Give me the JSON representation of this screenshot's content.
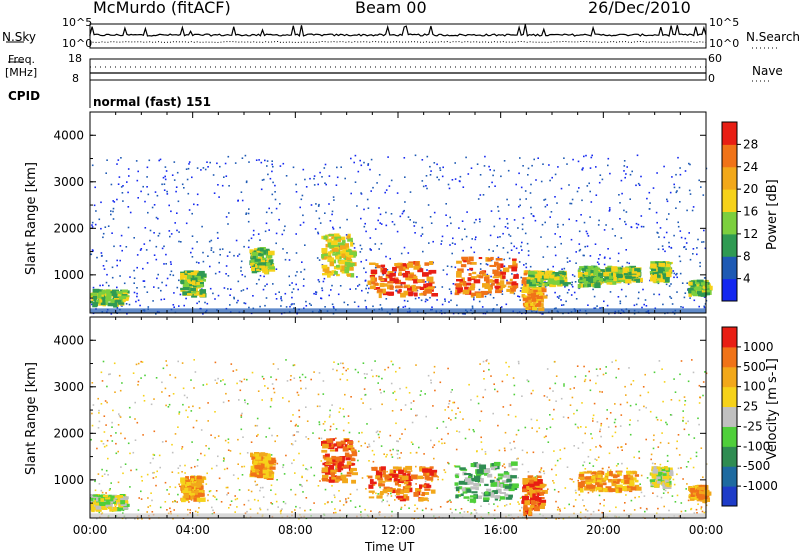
{
  "header": {
    "station": "McMurdo (fitACF)",
    "beam": "Beam 00",
    "date": "26/Dec/2010"
  },
  "top_panels": {
    "nsky_label": "N.Sky",
    "nsearch_label": "N.Search",
    "nsky_ticks": [
      "10^5",
      "10^0"
    ],
    "nsearch_ticks": [
      "10^5",
      "10^0"
    ],
    "freq_label": "Freq.",
    "freq_unit": "[MHz]",
    "freq_ticks": [
      "18",
      "8"
    ],
    "nave_label": "Nave",
    "nave_ticks": [
      "60",
      "0"
    ],
    "cpid_label": "CPID",
    "cpid_value": "normal (fast) 151"
  },
  "chart_data": [
    {
      "type": "heatmap",
      "name": "power",
      "ylabel": "Slant Range [km]",
      "ylim": [
        180,
        4500
      ],
      "yticks": [
        "1000",
        "2000",
        "3000",
        "4000"
      ],
      "colorbar_label": "Power [dB]",
      "colorbar_ticks": [
        "4",
        "8",
        "12",
        "16",
        "20",
        "24",
        "28"
      ],
      "colorbar_colors": [
        "#1428f0",
        "#1e5ab4",
        "#2f9a52",
        "#7ccf3e",
        "#f6d21a",
        "#f2a81a",
        "#f07318",
        "#e81e14"
      ],
      "echo_regions": [
        {
          "t0": 0.0,
          "t1": 1.3,
          "r0": 400,
          "r1": 700,
          "level": 3
        },
        {
          "t0": 3.5,
          "t1": 4.3,
          "r0": 600,
          "r1": 1100,
          "level": 3
        },
        {
          "t0": 6.2,
          "t1": 7.0,
          "r0": 1100,
          "r1": 1600,
          "level": 3
        },
        {
          "t0": 9.0,
          "t1": 10.2,
          "r0": 1000,
          "r1": 1900,
          "level": 4
        },
        {
          "t0": 10.8,
          "t1": 13.3,
          "r0": 600,
          "r1": 1300,
          "level": 6
        },
        {
          "t0": 14.2,
          "t1": 16.5,
          "r0": 600,
          "r1": 1400,
          "level": 6
        },
        {
          "t0": 16.8,
          "t1": 17.6,
          "r0": 300,
          "r1": 1100,
          "level": 5
        },
        {
          "t0": 17.0,
          "t1": 18.5,
          "r0": 800,
          "r1": 1100,
          "level": 3
        },
        {
          "t0": 19.0,
          "t1": 20.3,
          "r0": 800,
          "r1": 1200,
          "level": 3
        },
        {
          "t0": 20.3,
          "t1": 21.3,
          "r0": 900,
          "r1": 1200,
          "level": 3
        },
        {
          "t0": 21.8,
          "t1": 22.5,
          "r0": 900,
          "r1": 1300,
          "level": 3
        },
        {
          "t0": 23.3,
          "t1": 24.0,
          "r0": 600,
          "r1": 900,
          "level": 3
        }
      ]
    },
    {
      "type": "heatmap",
      "name": "velocity",
      "ylabel": "Slant Range [km]",
      "ylim": [
        180,
        4500
      ],
      "yticks": [
        "1000",
        "2000",
        "3000",
        "4000"
      ],
      "colorbar_label": "Velocity [m s-1]",
      "colorbar_ticks": [
        "1000",
        "500",
        "100",
        "25",
        "-25",
        "-100",
        "-500",
        "-1000"
      ],
      "colorbar_colors": [
        "#1e3cc8",
        "#1e6aa0",
        "#2f8c52",
        "#4fcf3a",
        "#c0c0c0",
        "#f6d21a",
        "#f2a81a",
        "#f07318",
        "#e81e14"
      ],
      "echo_regions": [
        {
          "t0": 0.0,
          "t1": 1.3,
          "r0": 400,
          "r1": 700,
          "level": 4
        },
        {
          "t0": 3.5,
          "t1": 4.3,
          "r0": 600,
          "r1": 1100,
          "level": 6
        },
        {
          "t0": 6.2,
          "t1": 7.0,
          "r0": 1100,
          "r1": 1600,
          "level": 6
        },
        {
          "t0": 9.0,
          "t1": 10.2,
          "r0": 1000,
          "r1": 1900,
          "level": 7
        },
        {
          "t0": 10.8,
          "t1": 13.3,
          "r0": 600,
          "r1": 1300,
          "level": 7
        },
        {
          "t0": 14.2,
          "t1": 16.5,
          "r0": 600,
          "r1": 1400,
          "level": 3
        },
        {
          "t0": 16.8,
          "t1": 17.6,
          "r0": 300,
          "r1": 1100,
          "level": 7
        },
        {
          "t0": 19.0,
          "t1": 21.3,
          "r0": 800,
          "r1": 1200,
          "level": 6
        },
        {
          "t0": 21.8,
          "t1": 22.5,
          "r0": 900,
          "r1": 1300,
          "level": 4
        },
        {
          "t0": 23.3,
          "t1": 24.0,
          "r0": 600,
          "r1": 900,
          "level": 6
        }
      ]
    }
  ],
  "xaxis": {
    "label": "Time UT",
    "xlim": [
      0,
      24
    ],
    "ticks": [
      "00:00",
      "04:00",
      "08:00",
      "12:00",
      "16:00",
      "20:00",
      "00:00"
    ]
  }
}
